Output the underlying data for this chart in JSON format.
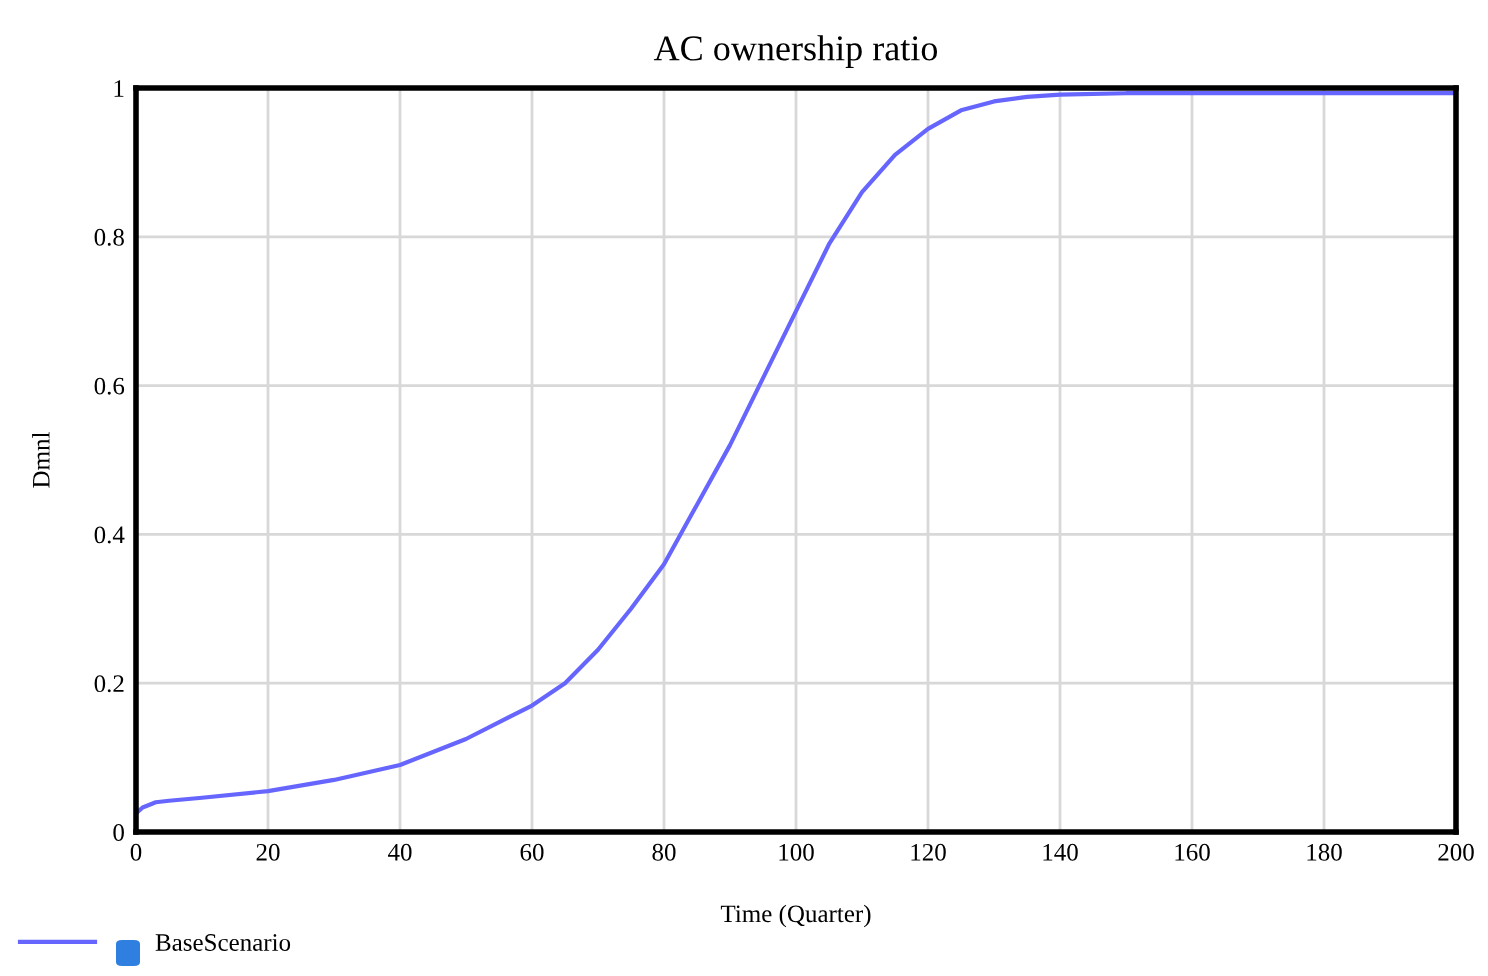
{
  "chart_data": {
    "type": "line",
    "title": "AC ownership ratio",
    "xlabel": "Time (Quarter)",
    "ylabel": "Dmnl",
    "x": [
      0,
      1,
      3,
      5,
      10,
      20,
      30,
      40,
      50,
      60,
      65,
      70,
      75,
      80,
      85,
      90,
      95,
      100,
      105,
      110,
      115,
      120,
      125,
      130,
      135,
      140,
      150,
      160,
      180,
      200
    ],
    "series": [
      {
        "name": "BaseScenario",
        "color": "#6666ff",
        "values": [
          0.025,
          0.033,
          0.04,
          0.042,
          0.046,
          0.055,
          0.07,
          0.09,
          0.125,
          0.17,
          0.2,
          0.245,
          0.3,
          0.36,
          0.44,
          0.52,
          0.61,
          0.7,
          0.79,
          0.86,
          0.91,
          0.945,
          0.97,
          0.982,
          0.988,
          0.991,
          0.993,
          0.993,
          0.993,
          0.993
        ]
      }
    ],
    "xlim": [
      0,
      200
    ],
    "xticks": [
      0,
      20,
      40,
      60,
      80,
      100,
      120,
      140,
      160,
      180,
      200
    ],
    "ylim": [
      0,
      1
    ],
    "yticks": [
      0,
      0.2,
      0.4,
      0.6,
      0.8,
      1
    ],
    "grid": true,
    "legend": "bottom left",
    "marker": "none",
    "line_style": "solid"
  }
}
